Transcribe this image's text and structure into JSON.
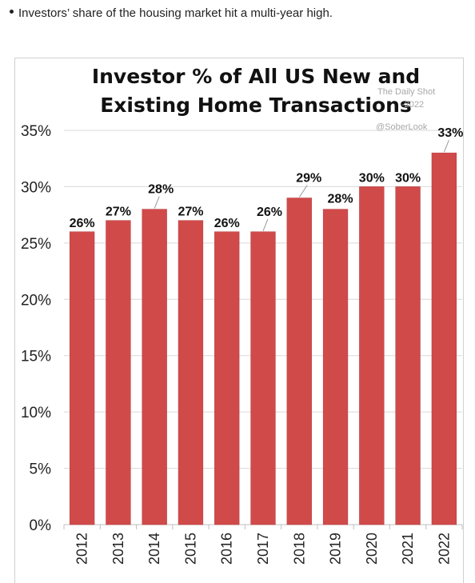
{
  "caption": {
    "text": "Investors’ share of the housing market hit a multi-year high."
  },
  "watermark": {
    "line1": "The Daily Shot",
    "line2": "-2022",
    "line3": "@SoberLook"
  },
  "colors": {
    "bar": "#d14a4a",
    "bar_edge": "#b53a3a",
    "grid": "#d9d9d9"
  },
  "chart_data": {
    "type": "bar",
    "title_lines": [
      "Investor % of All US New and",
      "Existing Home Transactions"
    ],
    "categories": [
      "2012",
      "2013",
      "2014",
      "2015",
      "2016",
      "2017",
      "2018",
      "2019",
      "2020",
      "2021",
      "2022"
    ],
    "values": [
      26,
      27,
      28,
      27,
      26,
      26,
      29,
      28,
      30,
      30,
      33
    ],
    "data_labels": [
      "26%",
      "27%",
      "28%",
      "27%",
      "26%",
      "26%",
      "29%",
      "28%",
      "30%",
      "30%",
      "33%"
    ],
    "y_ticks": [
      0,
      5,
      10,
      15,
      20,
      25,
      30,
      35
    ],
    "y_tick_labels": [
      "0%",
      "5%",
      "10%",
      "15%",
      "20%",
      "25%",
      "30%",
      "35%"
    ],
    "ylim": [
      0,
      35
    ],
    "grid": true,
    "legend": false
  }
}
